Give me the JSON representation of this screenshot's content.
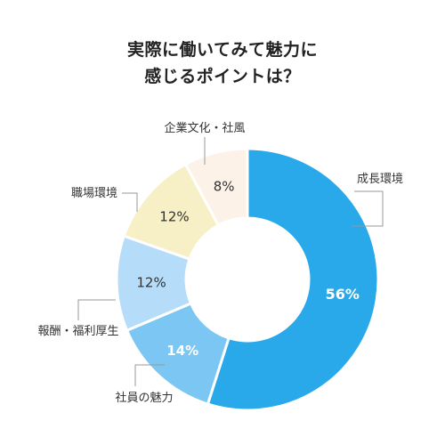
{
  "chart_data": {
    "type": "pie",
    "variant": "donut",
    "title_lines": [
      "実際に働いてみて魅力に",
      "感じるポイントは？"
    ],
    "categories": [
      "成長環境",
      "社員の魅力",
      "報酬・福利厚生",
      "職場環境",
      "企業文化・社風"
    ],
    "values": [
      56,
      14,
      12,
      12,
      8
    ],
    "value_labels": [
      "56%",
      "14%",
      "12%",
      "12%",
      "8%"
    ],
    "colors": [
      "#29a8ea",
      "#7cc6f3",
      "#b5dcf8",
      "#f7efc5",
      "#fdf2e7"
    ],
    "value_label_colors": [
      "#ffffff",
      "#ffffff",
      "#333333",
      "#333333",
      "#333333"
    ],
    "legend": "none"
  }
}
